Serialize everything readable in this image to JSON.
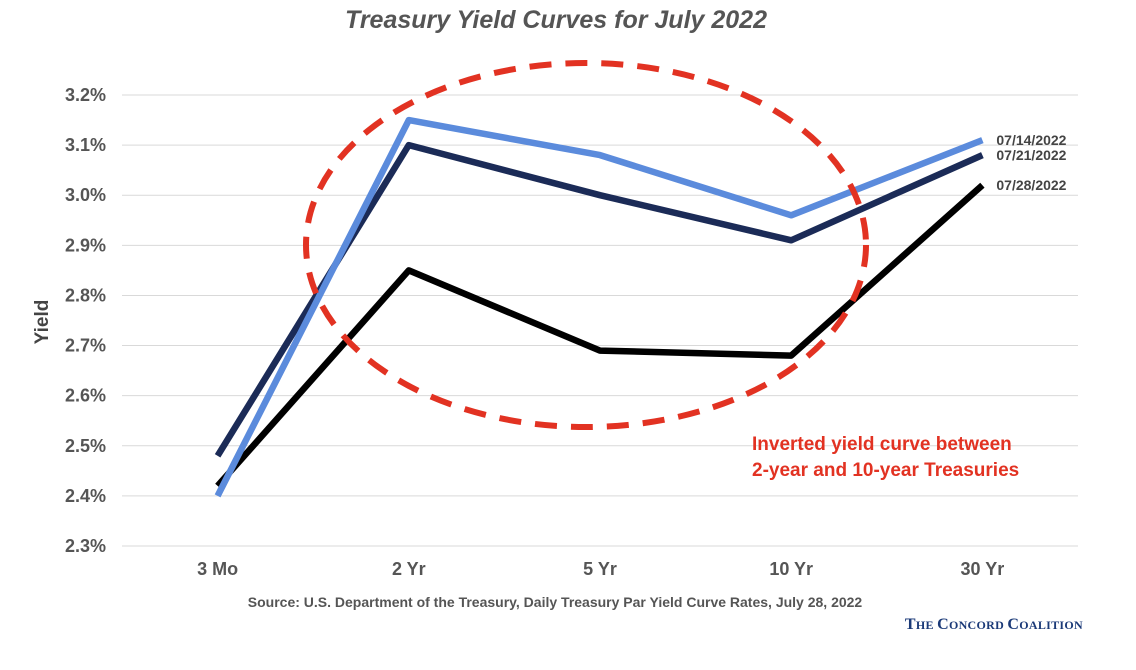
{
  "chart_data": {
    "type": "line",
    "title": "Treasury Yield Curves for July 2022",
    "ylabel": "Yield",
    "xlabel": "",
    "categories": [
      "3 Mo",
      "2 Yr",
      "5 Yr",
      "10 Yr",
      "30 Yr"
    ],
    "y_ticks": [
      "3.2%",
      "3.1%",
      "3.0%",
      "2.9%",
      "2.8%",
      "2.7%",
      "2.6%",
      "2.5%",
      "2.4%",
      "2.3%"
    ],
    "ylim": [
      2.3,
      3.2
    ],
    "grid": true,
    "series": [
      {
        "name": "07/21/2022",
        "color": "#1b2b57",
        "values": [
          2.48,
          3.1,
          3.0,
          2.91,
          3.08
        ]
      },
      {
        "name": "07/28/2022",
        "color": "#000000",
        "values": [
          2.42,
          2.85,
          2.69,
          2.68,
          3.02
        ]
      },
      {
        "name": "07/14/2022",
        "color": "#5b8bdc",
        "values": [
          2.4,
          3.15,
          3.08,
          2.96,
          3.11
        ]
      }
    ],
    "annotation": {
      "lines": [
        "Inverted yield curve between",
        "2-year and 10-year Treasuries"
      ],
      "color": "#e23222"
    },
    "source": "Source: U.S. Department of the Treasury, Daily Treasury Par Yield Curve Rates, July 28, 2022"
  },
  "brand": "The Concord Coalition"
}
